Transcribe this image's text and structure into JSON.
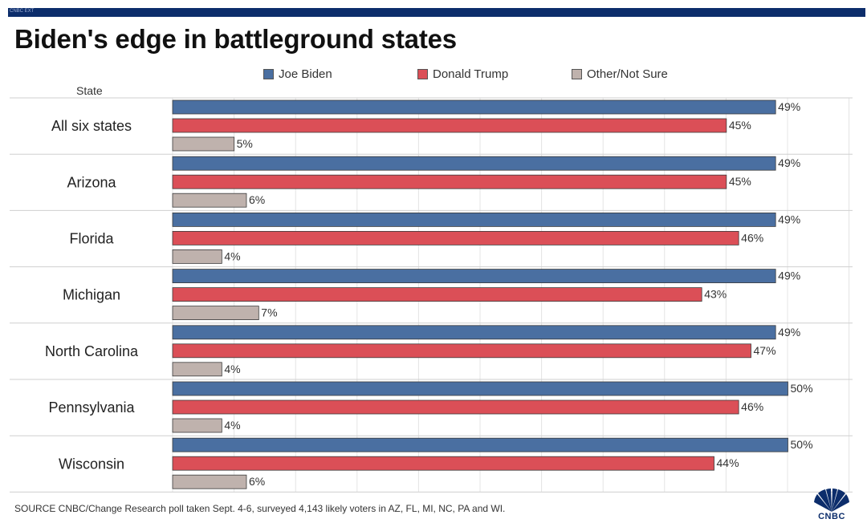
{
  "header": {
    "tag": "CNBC EXT",
    "title": "Biden's edge in battleground states"
  },
  "colors": {
    "biden": "#4a6fa1",
    "trump": "#db4f57",
    "other": "#bfb2ad",
    "brand": "#0c2d6b"
  },
  "legend": [
    {
      "label": "Joe Biden",
      "series": "biden"
    },
    {
      "label": "Donald Trump",
      "series": "trump"
    },
    {
      "label": "Other/Not Sure",
      "series": "other"
    }
  ],
  "state_header": "State",
  "chart_data": {
    "type": "bar",
    "orientation": "horizontal",
    "title": "Biden's edge in battleground states",
    "ylabel": "State",
    "xlim": [
      0,
      50
    ],
    "value_suffix": "%",
    "categories": [
      "All six states",
      "Arizona",
      "Florida",
      "Michigan",
      "North Carolina",
      "Pennsylvania",
      "Wisconsin"
    ],
    "series": [
      {
        "name": "Joe Biden",
        "key": "biden",
        "values": [
          49,
          49,
          49,
          49,
          49,
          50,
          50
        ]
      },
      {
        "name": "Donald Trump",
        "key": "trump",
        "values": [
          45,
          45,
          46,
          43,
          47,
          46,
          44
        ]
      },
      {
        "name": "Other/Not Sure",
        "key": "other",
        "values": [
          5,
          6,
          4,
          7,
          4,
          4,
          6
        ]
      }
    ]
  },
  "footer": {
    "source": "SOURCE CNBC/Change Research poll taken Sept. 4-6, surveyed 4,143 likely voters in AZ, FL, MI, NC, PA and WI.",
    "logo_text": "CNBC"
  }
}
